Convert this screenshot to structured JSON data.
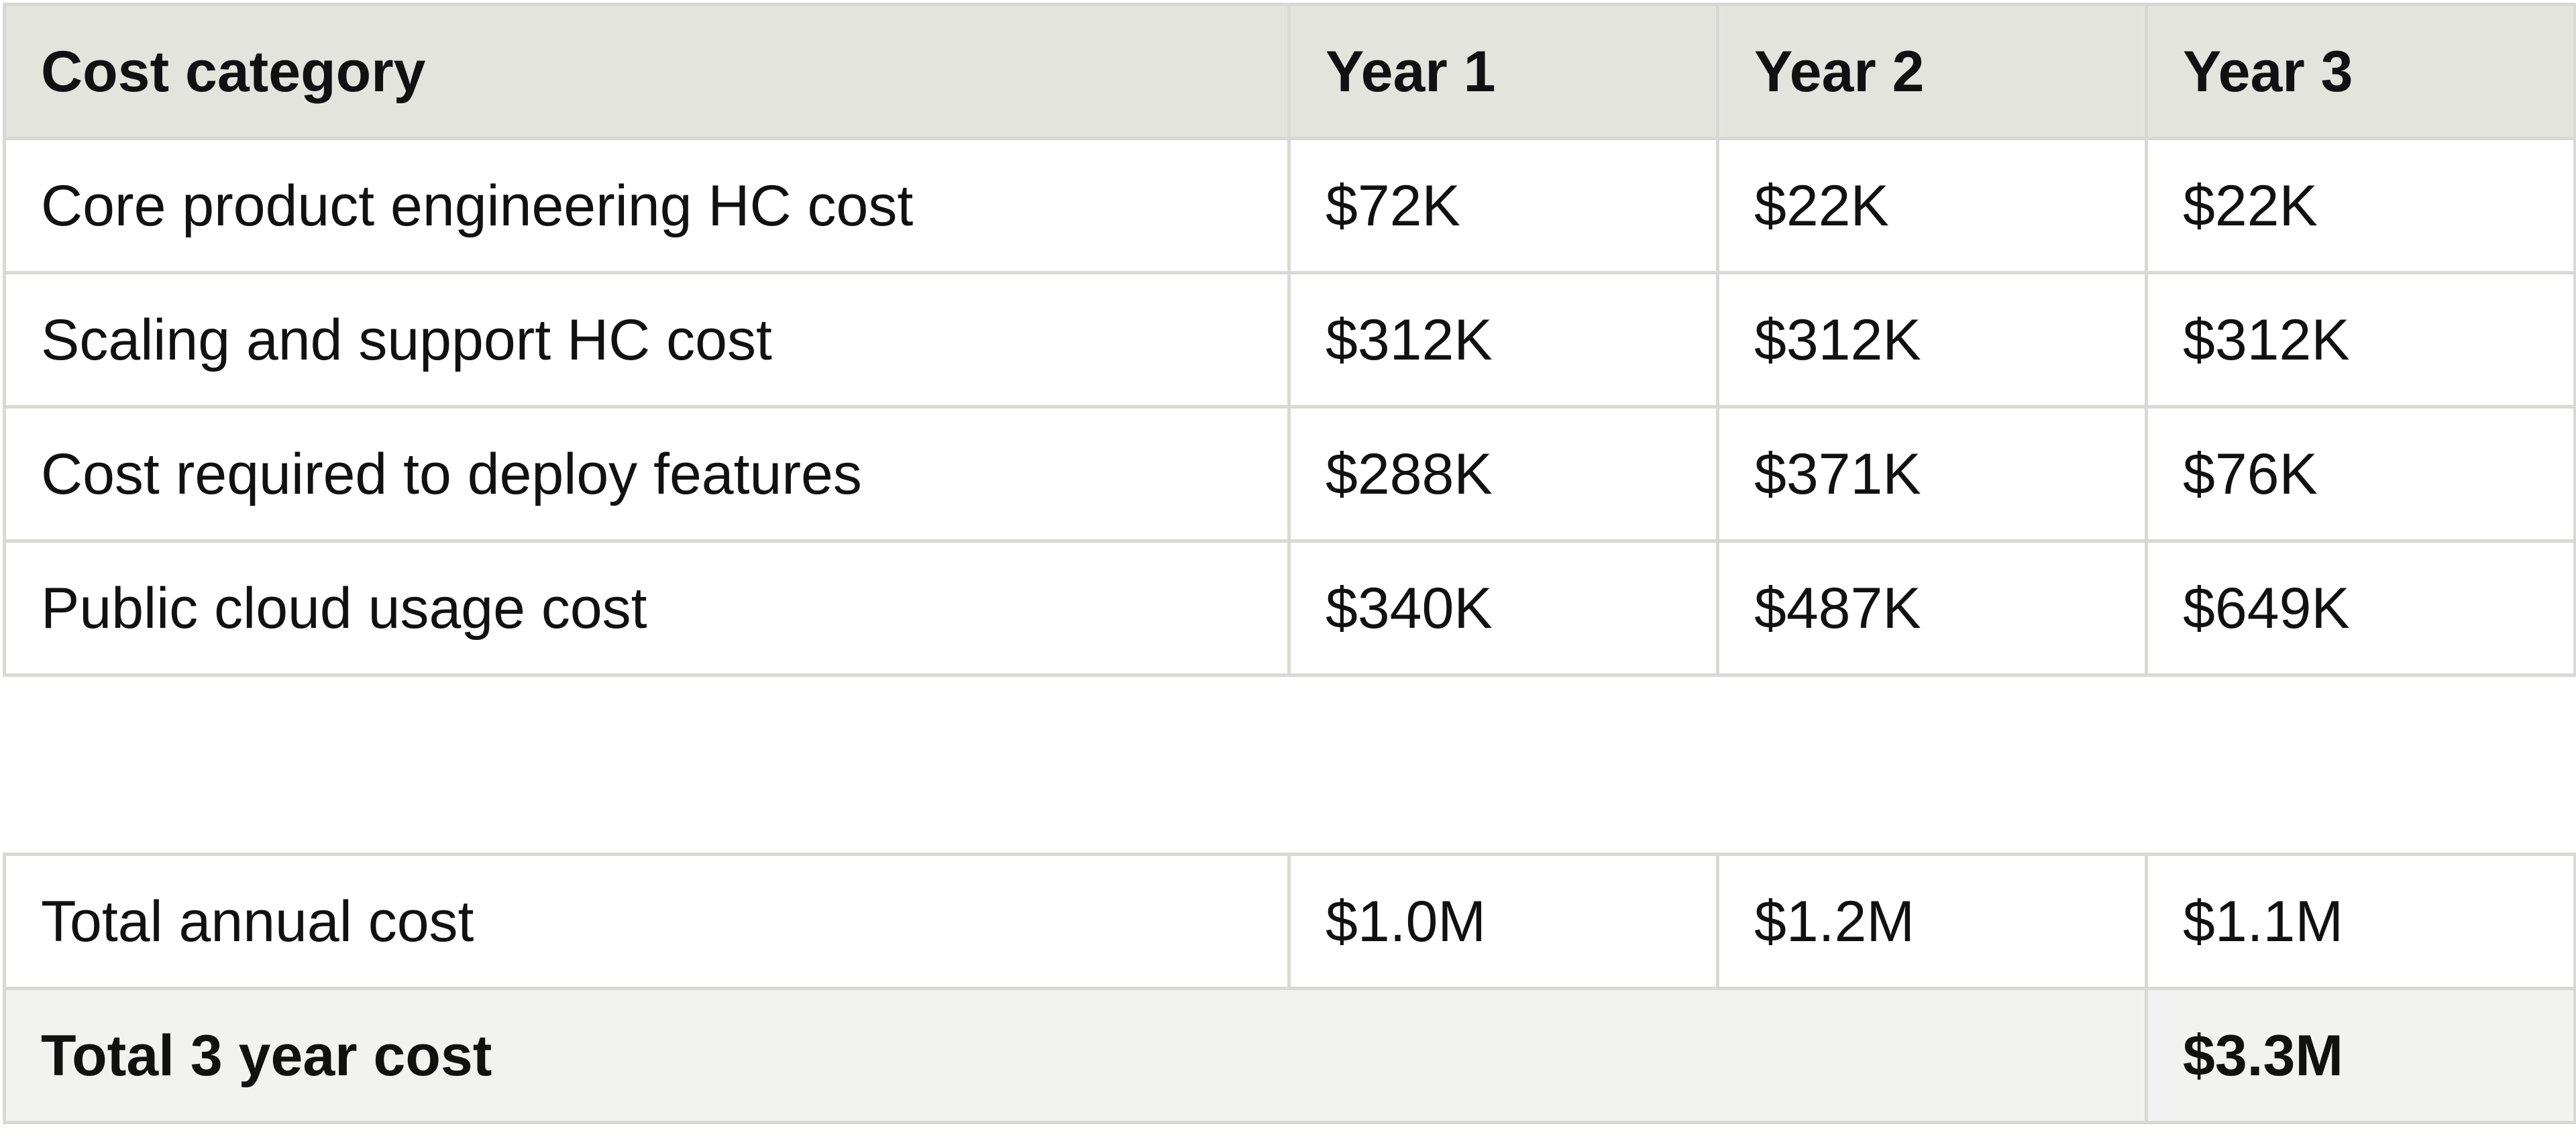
{
  "header": {
    "category": "Cost category",
    "years": [
      "Year 1",
      "Year 2",
      "Year 3"
    ]
  },
  "rows": [
    {
      "category": "Core product engineering HC cost",
      "values": [
        "$72K",
        "$22K",
        "$22K"
      ]
    },
    {
      "category": "Scaling and support HC cost",
      "values": [
        "$312K",
        "$312K",
        "$312K"
      ]
    },
    {
      "category": "Cost required to deploy features",
      "values": [
        "$288K",
        "$371K",
        "$76K"
      ]
    },
    {
      "category": "Public cloud usage cost",
      "values": [
        "$340K",
        "$487K",
        "$649K"
      ]
    }
  ],
  "totals": {
    "annual": {
      "label": "Total annual cost",
      "values": [
        "$1.0M",
        "$1.2M",
        "$1.1M"
      ]
    },
    "three_year": {
      "label": "Total 3 year cost",
      "value": "$3.3M"
    }
  },
  "colors": {
    "header_bg": "#e4e4df",
    "total_bg": "#f2f3f0",
    "border": "#d8d8d4",
    "text": "#111111"
  }
}
